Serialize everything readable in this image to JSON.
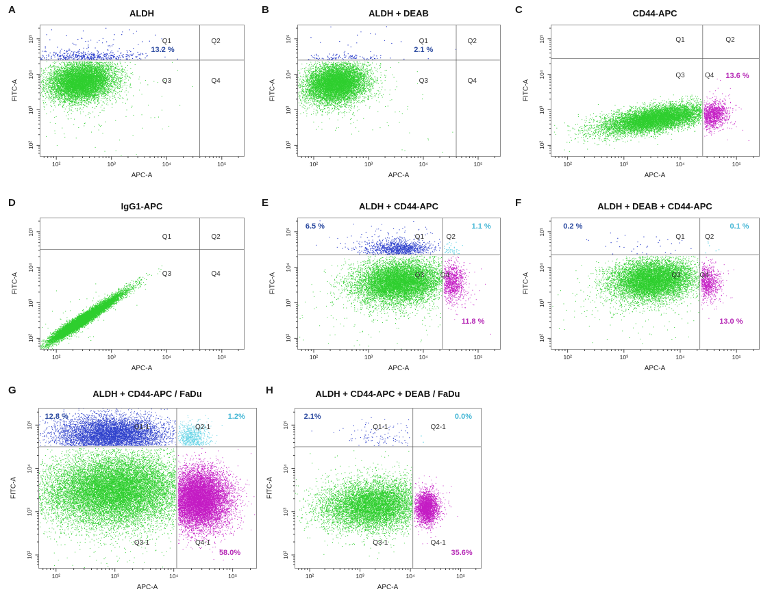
{
  "colors": {
    "green": "#2fcf2f",
    "blue": "#2e41cc",
    "cyan": "#66d4e6",
    "magenta": "#c41dc4",
    "blue_text": "#2b4aa0",
    "cyan_text": "#45b7d6",
    "magenta_text": "#b62ab6",
    "quad_label": "#333333",
    "axis_text": "#222222"
  },
  "axis": {
    "scale": "log10",
    "range": [
      1.7,
      5.4
    ],
    "decades": [
      2,
      3,
      4,
      5
    ],
    "tick_labels": [
      "10²",
      "10³",
      "10⁴",
      "10⁵"
    ]
  },
  "chart_data": [
    {
      "id": "A",
      "letter": "A",
      "title": "ALDH",
      "type": "scatter",
      "xlabel": "APC-A",
      "ylabel": "FITC-A",
      "gate_x": 4.6,
      "gate_y": 4.4,
      "quadrants": [
        {
          "text": "Q1",
          "fx": 0.6,
          "fy": 0.1
        },
        {
          "text": "Q2",
          "fx": 0.84,
          "fy": 0.1
        },
        {
          "text": "Q3",
          "fx": 0.6,
          "fy": 0.4
        },
        {
          "text": "Q4",
          "fx": 0.84,
          "fy": 0.4
        }
      ],
      "annotations": [
        {
          "text": "13.2 %",
          "color": "blue_text",
          "fx": 0.545,
          "fy": 0.16
        }
      ],
      "populations": [
        {
          "color": "green",
          "n": 9000,
          "cx": 2.45,
          "cy": 3.8,
          "sx": 0.3,
          "sy": 0.28,
          "rho": 0.15,
          "clip": {
            "ymax": 4.37
          }
        },
        {
          "color": "green",
          "n": 150,
          "cx": 2.8,
          "cy": 3.2,
          "sx": 0.7,
          "sy": 0.7,
          "clip": {
            "ymax": 4.37
          }
        },
        {
          "color": "blue",
          "n": 520,
          "cx": 2.55,
          "cy": 4.5,
          "sx": 0.5,
          "sy": 0.09,
          "pt": 1.2,
          "clip": {
            "ymin": 4.42
          }
        },
        {
          "color": "blue",
          "n": 90,
          "cx": 2.7,
          "cy": 4.75,
          "sx": 0.6,
          "sy": 0.3,
          "pt": 1.2,
          "clip": {
            "ymin": 4.42
          }
        }
      ]
    },
    {
      "id": "B",
      "letter": "B",
      "title": "ALDH + DEAB",
      "type": "scatter",
      "xlabel": "APC-A",
      "ylabel": "FITC-A",
      "gate_x": 4.6,
      "gate_y": 4.4,
      "quadrants": [
        {
          "text": "Q1",
          "fx": 0.6,
          "fy": 0.1
        },
        {
          "text": "Q2",
          "fx": 0.84,
          "fy": 0.1
        },
        {
          "text": "Q3",
          "fx": 0.6,
          "fy": 0.4
        },
        {
          "text": "Q4",
          "fx": 0.84,
          "fy": 0.4
        }
      ],
      "annotations": [
        {
          "text": "2.1 %",
          "color": "blue_text",
          "fx": 0.575,
          "fy": 0.16
        }
      ],
      "populations": [
        {
          "color": "green",
          "n": 9000,
          "cx": 2.4,
          "cy": 3.75,
          "sx": 0.28,
          "sy": 0.28,
          "rho": 0.15,
          "clip": {
            "ymax": 4.37
          }
        },
        {
          "color": "green",
          "n": 120,
          "cx": 2.8,
          "cy": 3.2,
          "sx": 0.7,
          "sy": 0.65,
          "clip": {
            "ymax": 4.37
          }
        },
        {
          "color": "blue",
          "n": 140,
          "cx": 2.5,
          "cy": 4.47,
          "sx": 0.42,
          "sy": 0.06,
          "pt": 1.2,
          "clip": {
            "ymin": 4.42
          }
        },
        {
          "color": "blue",
          "n": 30,
          "cx": 2.8,
          "cy": 4.8,
          "sx": 0.6,
          "sy": 0.3,
          "pt": 1.2,
          "clip": {
            "ymin": 4.42
          }
        }
      ]
    },
    {
      "id": "C",
      "letter": "C",
      "title": "CD44-APC",
      "type": "scatter",
      "xlabel": "APC-A",
      "ylabel": "FITC-A",
      "gate_x": 4.4,
      "gate_y": 4.45,
      "quadrants": [
        {
          "text": "Q1",
          "fx": 0.6,
          "fy": 0.09
        },
        {
          "text": "Q2",
          "fx": 0.84,
          "fy": 0.09
        },
        {
          "text": "Q3",
          "fx": 0.6,
          "fy": 0.36
        },
        {
          "text": "Q4",
          "fx": 0.74,
          "fy": 0.36
        }
      ],
      "annotations": [
        {
          "text": "13.6 %",
          "color": "magenta_text",
          "fx": 0.84,
          "fy": 0.36
        }
      ],
      "populations": [
        {
          "color": "green",
          "n": 9000,
          "cx": 3.55,
          "cy": 2.75,
          "sx": 0.45,
          "sy": 0.2,
          "rho": 0.55,
          "clip": {
            "xmax": 4.38
          }
        },
        {
          "color": "green",
          "n": 250,
          "cx": 3.0,
          "cy": 2.55,
          "sx": 0.65,
          "sy": 0.3,
          "rho": 0.5,
          "clip": {
            "xmax": 4.38
          }
        },
        {
          "color": "magenta",
          "n": 1500,
          "cx": 4.55,
          "cy": 2.85,
          "sx": 0.15,
          "sy": 0.2,
          "rho": 0.2,
          "clip": {
            "xmin": 4.42
          }
        },
        {
          "color": "magenta",
          "n": 60,
          "cx": 4.6,
          "cy": 3.0,
          "sx": 0.25,
          "sy": 0.4,
          "clip": {
            "xmin": 4.42
          }
        }
      ]
    },
    {
      "id": "D",
      "letter": "D",
      "title": "IgG1-APC",
      "type": "scatter",
      "xlabel": "APC-A",
      "ylabel": "FITC-A",
      "gate_x": 4.6,
      "gate_y": 4.5,
      "quadrants": [
        {
          "text": "Q1",
          "fx": 0.6,
          "fy": 0.12
        },
        {
          "text": "Q2",
          "fx": 0.84,
          "fy": 0.12
        },
        {
          "text": "Q3",
          "fx": 0.6,
          "fy": 0.4
        },
        {
          "text": "Q4",
          "fx": 0.84,
          "fy": 0.4
        }
      ],
      "annotations": [],
      "populations": [
        {
          "color": "green",
          "n": 8000,
          "cx": 2.55,
          "cy": 2.6,
          "sx": 0.34,
          "sy": 0.36,
          "rho": 0.975
        },
        {
          "color": "green",
          "n": 4000,
          "cx": 2.32,
          "cy": 2.38,
          "sx": 0.17,
          "sy": 0.17,
          "rho": 0.9
        },
        {
          "color": "green",
          "n": 70,
          "cx": 2.6,
          "cy": 2.65,
          "sx": 0.5,
          "sy": 0.55,
          "rho": 0.6
        }
      ]
    },
    {
      "id": "E",
      "letter": "E",
      "title": "ALDH + CD44-APC",
      "type": "scatter",
      "xlabel": "APC-A",
      "ylabel": "FITC-A",
      "gate_x": 4.35,
      "gate_y": 4.35,
      "quadrants": [
        {
          "text": "Q1",
          "fx": 0.58,
          "fy": 0.12
        },
        {
          "text": "Q2",
          "fx": 0.735,
          "fy": 0.12
        },
        {
          "text": "Q3",
          "fx": 0.58,
          "fy": 0.41
        },
        {
          "text": "Q4",
          "fx": 0.705,
          "fy": 0.41
        }
      ],
      "annotations": [
        {
          "text": "6.5 %",
          "color": "blue_text",
          "fx": 0.04,
          "fy": 0.035
        },
        {
          "text": "1.1 %",
          "color": "cyan_text",
          "fx": 0.86,
          "fy": 0.035
        },
        {
          "text": "11.8 %",
          "color": "magenta_text",
          "fx": 0.81,
          "fy": 0.76
        }
      ],
      "populations": [
        {
          "color": "green",
          "n": 9500,
          "cx": 3.55,
          "cy": 3.6,
          "sx": 0.4,
          "sy": 0.3,
          "rho": 0.1,
          "clip": {
            "xmax": 4.34,
            "ymax": 4.33
          }
        },
        {
          "color": "green",
          "n": 280,
          "cx": 3.2,
          "cy": 3.0,
          "sx": 0.7,
          "sy": 0.55,
          "clip": {
            "xmax": 4.34,
            "ymax": 4.33
          }
        },
        {
          "color": "blue",
          "n": 1100,
          "cx": 3.55,
          "cy": 4.52,
          "sx": 0.3,
          "sy": 0.12,
          "pt": 1.1,
          "clip": {
            "xmax": 4.34,
            "ymin": 4.37
          }
        },
        {
          "color": "blue",
          "n": 140,
          "cx": 3.5,
          "cy": 4.75,
          "sx": 0.5,
          "sy": 0.25,
          "pt": 1.1,
          "clip": {
            "xmax": 4.34,
            "ymin": 4.37
          }
        },
        {
          "color": "magenta",
          "n": 1200,
          "cx": 4.5,
          "cy": 3.6,
          "sx": 0.13,
          "sy": 0.27,
          "clip": {
            "xmin": 4.37,
            "ymax": 4.33
          }
        },
        {
          "color": "magenta",
          "n": 60,
          "cx": 4.6,
          "cy": 3.3,
          "sx": 0.25,
          "sy": 0.5,
          "clip": {
            "xmin": 4.37,
            "ymax": 4.33
          }
        },
        {
          "color": "cyan",
          "n": 70,
          "cx": 4.47,
          "cy": 4.5,
          "sx": 0.1,
          "sy": 0.12,
          "pt": 1.2,
          "clip": {
            "xmin": 4.37,
            "ymin": 4.37
          }
        }
      ]
    },
    {
      "id": "F",
      "letter": "F",
      "title": "ALDH + DEAB + CD44-APC",
      "type": "scatter",
      "xlabel": "APC-A",
      "ylabel": "FITC-A",
      "gate_x": 4.35,
      "gate_y": 4.35,
      "quadrants": [
        {
          "text": "Q1",
          "fx": 0.6,
          "fy": 0.12
        },
        {
          "text": "Q2",
          "fx": 0.74,
          "fy": 0.12
        },
        {
          "text": "Q3",
          "fx": 0.58,
          "fy": 0.41
        },
        {
          "text": "Q4",
          "fx": 0.715,
          "fy": 0.41
        }
      ],
      "annotations": [
        {
          "text": "0.2 %",
          "color": "blue_text",
          "fx": 0.06,
          "fy": 0.035
        },
        {
          "text": "0.1 %",
          "color": "cyan_text",
          "fx": 0.86,
          "fy": 0.035
        },
        {
          "text": "13.0 %",
          "color": "magenta_text",
          "fx": 0.81,
          "fy": 0.76
        }
      ],
      "populations": [
        {
          "color": "green",
          "n": 9000,
          "cx": 3.5,
          "cy": 3.65,
          "sx": 0.36,
          "sy": 0.28,
          "rho": 0.1,
          "clip": {
            "xmax": 4.34,
            "ymax": 4.33
          }
        },
        {
          "color": "green",
          "n": 260,
          "cx": 3.2,
          "cy": 3.1,
          "sx": 0.65,
          "sy": 0.5,
          "clip": {
            "xmax": 4.34,
            "ymax": 4.33
          }
        },
        {
          "color": "blue",
          "n": 40,
          "cx": 3.4,
          "cy": 4.6,
          "sx": 0.55,
          "sy": 0.17,
          "pt": 1.2,
          "clip": {
            "xmax": 4.34,
            "ymin": 4.37
          }
        },
        {
          "color": "magenta",
          "n": 1000,
          "cx": 4.47,
          "cy": 3.6,
          "sx": 0.11,
          "sy": 0.24,
          "clip": {
            "xmin": 4.37,
            "ymax": 4.33
          }
        },
        {
          "color": "magenta",
          "n": 50,
          "cx": 4.55,
          "cy": 3.3,
          "sx": 0.2,
          "sy": 0.45,
          "clip": {
            "xmin": 4.37,
            "ymax": 4.33
          }
        },
        {
          "color": "cyan",
          "n": 6,
          "cx": 4.5,
          "cy": 4.55,
          "sx": 0.12,
          "sy": 0.12,
          "pt": 1.3,
          "clip": {
            "xmin": 4.37,
            "ymin": 4.37
          }
        }
      ]
    },
    {
      "id": "G",
      "letter": "G",
      "title": "ALDH + CD44-APC / FaDu",
      "type": "scatter",
      "xlabel": "APC-A",
      "ylabel": "FITC-A",
      "gate_x": 4.05,
      "gate_y": 4.5,
      "quadrants": [
        {
          "text": "Q1-1",
          "fx": 0.44,
          "fy": 0.1
        },
        {
          "text": "Q2-1",
          "fx": 0.72,
          "fy": 0.1
        },
        {
          "text": "Q3-1",
          "fx": 0.44,
          "fy": 0.82
        },
        {
          "text": "Q4-1",
          "fx": 0.72,
          "fy": 0.82
        }
      ],
      "annotations": [
        {
          "text": "12.8 %",
          "color": "blue_text",
          "fx": 0.03,
          "fy": 0.03
        },
        {
          "text": "1.2%",
          "color": "cyan_text",
          "fx": 0.87,
          "fy": 0.03
        },
        {
          "text": "58.0%",
          "color": "magenta_text",
          "fx": 0.83,
          "fy": 0.88
        }
      ],
      "populations": [
        {
          "color": "green",
          "n": 16000,
          "cx": 3.0,
          "cy": 3.5,
          "sx": 0.6,
          "sy": 0.4,
          "rho": 0.05,
          "clip": {
            "xmax": 4.03,
            "ymax": 4.47
          }
        },
        {
          "color": "green",
          "n": 500,
          "cx": 3.0,
          "cy": 3.1,
          "sx": 0.85,
          "sy": 0.7,
          "clip": {
            "xmax": 4.03,
            "ymax": 4.47
          }
        },
        {
          "color": "blue",
          "n": 7000,
          "cx": 2.95,
          "cy": 4.78,
          "sx": 0.45,
          "sy": 0.22,
          "clip": {
            "xmax": 4.03,
            "ymin": 4.53
          }
        },
        {
          "color": "blue",
          "n": 500,
          "cx": 2.9,
          "cy": 4.65,
          "sx": 0.6,
          "sy": 0.3,
          "clip": {
            "xmax": 4.03,
            "ymin": 4.53
          }
        },
        {
          "color": "magenta",
          "n": 11000,
          "cx": 4.42,
          "cy": 3.3,
          "sx": 0.25,
          "sy": 0.33,
          "clip": {
            "xmin": 4.07,
            "ymax": 4.47
          }
        },
        {
          "color": "magenta",
          "n": 300,
          "cx": 4.5,
          "cy": 3.0,
          "sx": 0.35,
          "sy": 0.55,
          "clip": {
            "xmin": 4.07,
            "ymax": 4.47
          }
        },
        {
          "color": "cyan",
          "n": 900,
          "cx": 4.3,
          "cy": 4.72,
          "sx": 0.15,
          "sy": 0.17,
          "clip": {
            "xmin": 4.07,
            "ymin": 4.53
          }
        }
      ]
    },
    {
      "id": "H",
      "letter": "H",
      "title": "ALDH + CD44-APC + DEAB / FaDu",
      "type": "scatter",
      "xlabel": "APC-A",
      "ylabel": "FITC-A",
      "gate_x": 4.05,
      "gate_y": 4.5,
      "quadrants": [
        {
          "text": "Q1-1",
          "fx": 0.42,
          "fy": 0.1
        },
        {
          "text": "Q2-1",
          "fx": 0.73,
          "fy": 0.1
        },
        {
          "text": "Q3-1",
          "fx": 0.42,
          "fy": 0.82
        },
        {
          "text": "Q4-1",
          "fx": 0.73,
          "fy": 0.82
        }
      ],
      "annotations": [
        {
          "text": "2.1%",
          "color": "blue_text",
          "fx": 0.05,
          "fy": 0.03
        },
        {
          "text": "0.0%",
          "color": "cyan_text",
          "fx": 0.86,
          "fy": 0.03
        },
        {
          "text": "35.6%",
          "color": "magenta_text",
          "fx": 0.84,
          "fy": 0.88
        }
      ],
      "populations": [
        {
          "color": "green",
          "n": 8000,
          "cx": 3.25,
          "cy": 3.15,
          "sx": 0.5,
          "sy": 0.28,
          "rho": 0.1,
          "clip": {
            "xmax": 4.03,
            "ymax": 4.47
          }
        },
        {
          "color": "green",
          "n": 350,
          "cx": 3.1,
          "cy": 3.3,
          "sx": 0.8,
          "sy": 0.6,
          "clip": {
            "xmax": 4.03,
            "ymax": 4.47
          }
        },
        {
          "color": "blue",
          "n": 130,
          "cx": 3.4,
          "cy": 4.72,
          "sx": 0.45,
          "sy": 0.18,
          "pt": 1.1,
          "clip": {
            "xmax": 4.03,
            "ymin": 4.53
          }
        },
        {
          "color": "magenta",
          "n": 2800,
          "cx": 4.32,
          "cy": 3.1,
          "sx": 0.11,
          "sy": 0.19,
          "clip": {
            "xmin": 4.07
          }
        },
        {
          "color": "magenta",
          "n": 80,
          "cx": 4.4,
          "cy": 3.1,
          "sx": 0.2,
          "sy": 0.35,
          "clip": {
            "xmin": 4.07
          }
        },
        {
          "color": "cyan",
          "n": 2,
          "cx": 4.2,
          "cy": 4.65,
          "sx": 0.06,
          "sy": 0.06,
          "pt": 1.3,
          "clip": {
            "xmin": 4.07,
            "ymin": 4.53
          }
        }
      ]
    }
  ]
}
